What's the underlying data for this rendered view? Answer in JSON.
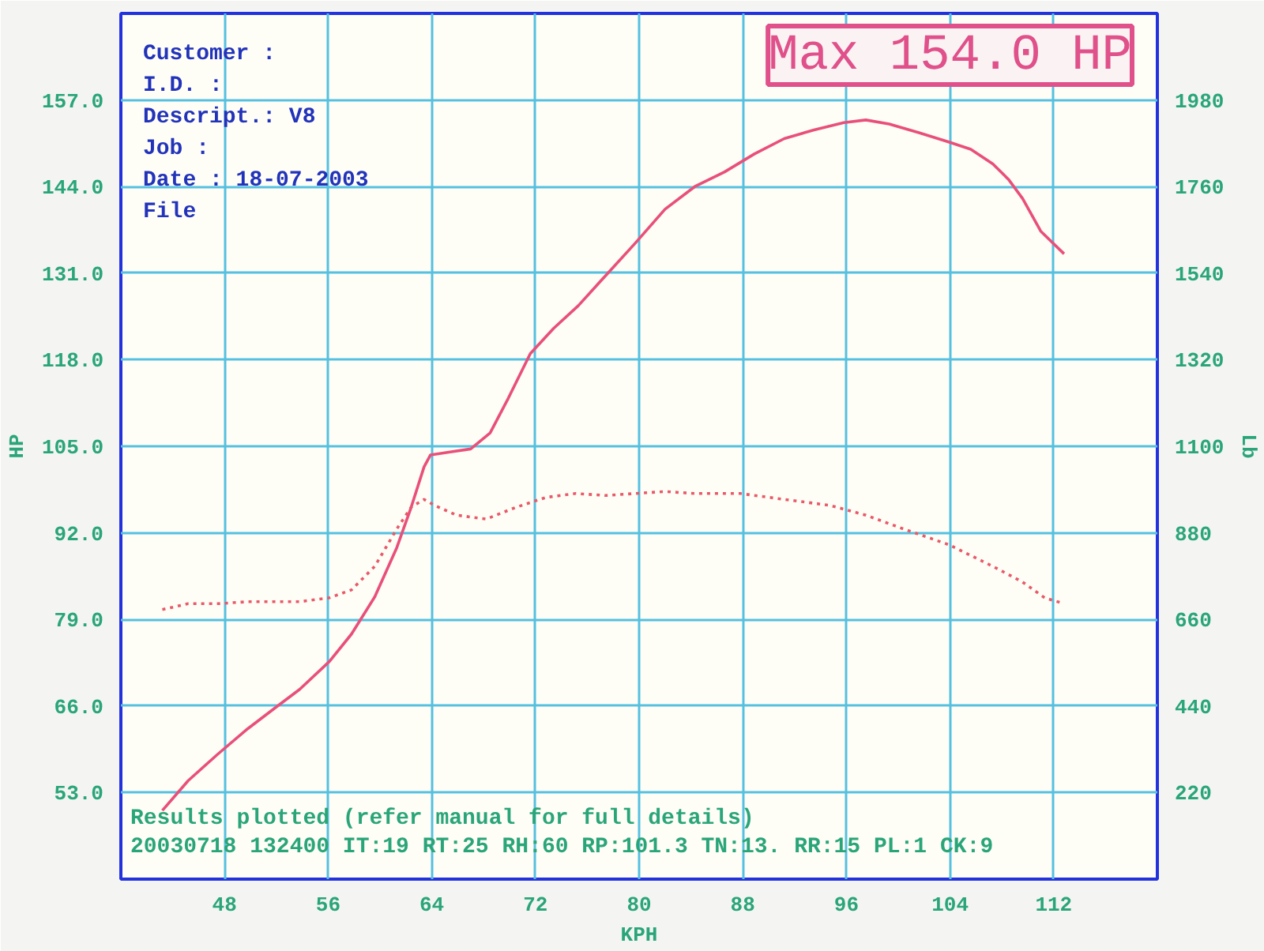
{
  "chart_data": {
    "type": "line",
    "title": "Max 154.0 HP",
    "xlabel": "KPH",
    "ylabel": "HP",
    "y2label": "Lb",
    "annotations": [
      "Customer :",
      "I.D.     :",
      "Descript.: V8",
      "Job      :",
      "Date     : 18-07-2003",
      "File",
      "Results plotted (refer manual for full details)",
      "20030718 132400 IT:19 RT:25 RH:60 RP:101.3 TN:13. RR:15 PL:1 CK:9"
    ],
    "xlim": [
      40,
      120
    ],
    "xticks": [
      48,
      56,
      64,
      72,
      80,
      88,
      96,
      104,
      112
    ],
    "ylim": [
      40,
      170
    ],
    "yticks": [
      {
        "value": 53,
        "label": "53.0"
      },
      {
        "value": 66,
        "label": "66.0"
      },
      {
        "value": 79,
        "label": "79.0"
      },
      {
        "value": 92,
        "label": "92.0"
      },
      {
        "value": 105,
        "label": "105.0"
      },
      {
        "value": 118,
        "label": "118.0"
      },
      {
        "value": 131,
        "label": "131.0"
      },
      {
        "value": 144,
        "label": "144.0"
      },
      {
        "value": 157,
        "label": "157.0"
      }
    ],
    "y2lim": [
      0,
      2200
    ],
    "y2ticks": [
      220,
      440,
      660,
      880,
      1100,
      1320,
      1540,
      1760,
      1980
    ],
    "grid": true,
    "marker": "none",
    "series": [
      {
        "color": "#e8507a",
        "line_style": "solid",
        "x": [
          43.2,
          45.2,
          47.5,
          49.8,
          52.1,
          53.8,
          56.1,
          57.8,
          59.6,
          61.3,
          62.4,
          63.4,
          63.9,
          65.3,
          67.0,
          68.5,
          69.9,
          71.6,
          73.4,
          75.3,
          77.4,
          79.7,
          82.0,
          84.3,
          86.6,
          88.9,
          91.2,
          93.5,
          95.8,
          97.5,
          99.3,
          101.6,
          103.9,
          105.6,
          107.3,
          108.5,
          109.6,
          111.0,
          112.8
        ],
        "values": [
          50.3,
          54.8,
          58.8,
          62.6,
          66.0,
          68.5,
          72.7,
          76.8,
          82.4,
          89.8,
          95.8,
          101.9,
          103.7,
          104.1,
          104.6,
          107.0,
          112.2,
          118.9,
          122.7,
          126.1,
          130.6,
          135.5,
          140.6,
          144.0,
          146.2,
          148.9,
          151.2,
          152.5,
          153.6,
          154.0,
          153.4,
          152.1,
          150.7,
          149.6,
          147.4,
          145.1,
          142.2,
          137.3,
          133.9
        ]
      },
      {
        "color": "#e85a6a",
        "line_style": "dotted",
        "axis": "y2",
        "x": [
          43.2,
          45.2,
          47.5,
          49.8,
          52.1,
          53.8,
          56.1,
          57.8,
          59.6,
          61.3,
          62.4,
          63.4,
          64.2,
          65.9,
          68.2,
          70.5,
          72.8,
          75.1,
          77.4,
          79.7,
          82.0,
          84.3,
          87.8,
          91.2,
          94.7,
          97.5,
          100.4,
          103.9,
          107.3,
          109.6,
          111.3,
          112.8
        ],
        "values": [
          685,
          700,
          700,
          705,
          705,
          705,
          715,
          735,
          795,
          890,
          945,
          965,
          950,
          925,
          915,
          945,
          970,
          980,
          975,
          980,
          985,
          980,
          980,
          965,
          950,
          925,
          890,
          850,
          795,
          755,
          715,
          700
        ]
      }
    ]
  }
}
